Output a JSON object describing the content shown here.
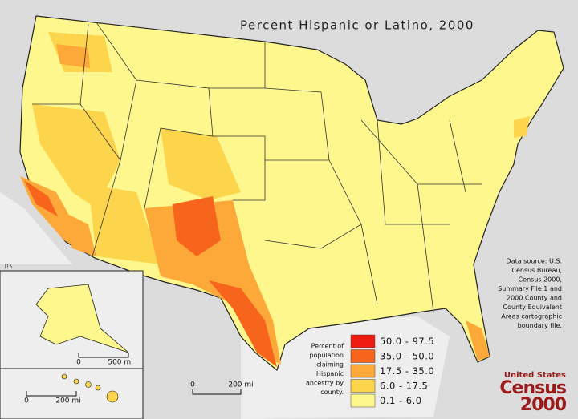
{
  "title": "Percent Hispanic or Latino, 2000",
  "credit": "JTK",
  "data_source": [
    "Data source:  U.S.",
    "Census Bureau,",
    "Census 2000,",
    "Summary File 1 and",
    "2000 County and",
    "County Equivalent",
    "Areas cartographic",
    "boundary file."
  ],
  "legend": {
    "caption": [
      "Percent of",
      "population",
      "claiming",
      "Hispanic",
      "ancestry by",
      "county."
    ],
    "items": [
      {
        "label": "50.0 - 97.5",
        "color": "#ee1c10"
      },
      {
        "label": "35.0 - 50.0",
        "color": "#f7641c"
      },
      {
        "label": "17.5 - 35.0",
        "color": "#fca93a"
      },
      {
        "label": "6.0 - 17.5",
        "color": "#fdd54c"
      },
      {
        "label": "0.1 - 6.0",
        "color": "#fdf78e"
      }
    ]
  },
  "scales": {
    "alaska": {
      "start": "0",
      "end": "500 mi"
    },
    "hawaii": {
      "start": "0",
      "end": "200 mi"
    },
    "mainland": {
      "start": "0",
      "end": "200 mi"
    }
  },
  "logo": {
    "top": "United States",
    "middle": "Census",
    "bottom": "2000"
  }
}
